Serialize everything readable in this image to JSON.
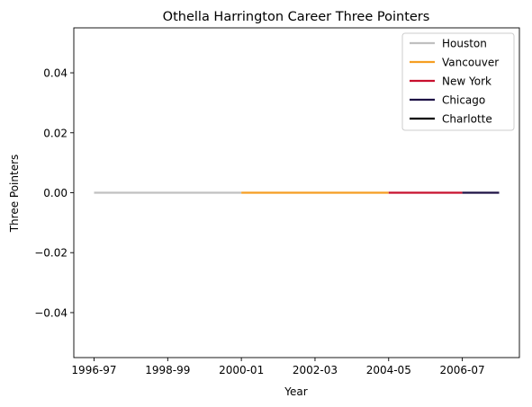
{
  "chart_data": {
    "type": "line",
    "title": "Othella Harrington Career Three Pointers",
    "xlabel": "Year",
    "ylabel": "Three Pointers",
    "x_categories": [
      "1996-97",
      "1997-98",
      "1998-99",
      "1999-00",
      "2000-01",
      "2001-02",
      "2002-03",
      "2003-04",
      "2004-05",
      "2005-06",
      "2006-07",
      "2007-08"
    ],
    "x_tick_labels": [
      "1996-97",
      "1998-99",
      "2000-01",
      "2002-03",
      "2004-05",
      "2006-07"
    ],
    "ylim": [
      -0.055,
      0.055
    ],
    "y_ticks": [
      -0.04,
      -0.02,
      0.0,
      0.02,
      0.04
    ],
    "y_tick_labels": [
      "−0.04",
      "−0.02",
      "0.00",
      "0.02",
      "0.04"
    ],
    "legend_placement": "top-right",
    "series": [
      {
        "name": "Houston",
        "color": "#c0c0c0",
        "x": [
          "1996-97",
          "1997-98",
          "1998-99",
          "1999-00",
          "2000-01"
        ],
        "values": [
          0,
          0,
          0,
          0,
          0
        ]
      },
      {
        "name": "Vancouver",
        "color": "#f59e22",
        "x": [
          "2000-01",
          "2001-02",
          "2002-03",
          "2003-04",
          "2004-05"
        ],
        "values": [
          0,
          0,
          0,
          0,
          0
        ]
      },
      {
        "name": "New York",
        "color": "#c8102e",
        "x": [
          "2004-05",
          "2005-06",
          "2006-07"
        ],
        "values": [
          0,
          0,
          0
        ]
      },
      {
        "name": "Chicago",
        "color": "#1d1145",
        "x": [
          "2006-07",
          "2007-08"
        ],
        "values": [
          0,
          0
        ]
      },
      {
        "name": "Charlotte",
        "color": "#000000",
        "x": [],
        "values": []
      }
    ]
  }
}
